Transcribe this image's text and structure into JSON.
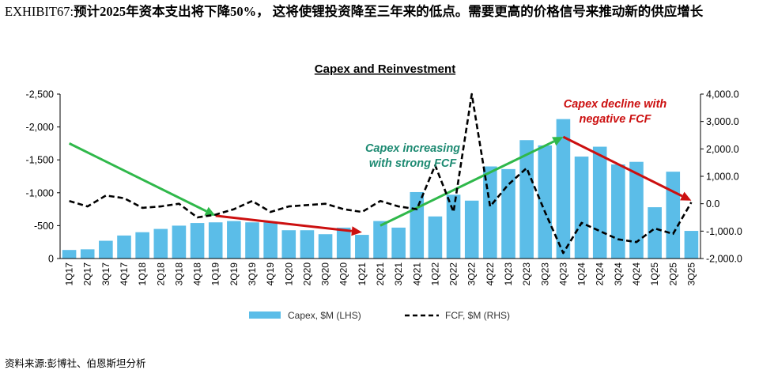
{
  "header": {
    "exhibit_label": "EXHIBIT67:",
    "exhibit_text": "预计2025年资本支出将下降50%， 这将使锂投资降至三年来的低点。需要更高的价格信号来推动新的供应增长"
  },
  "source_note": "资料来源:彭博社、伯恩斯坦分析",
  "chart_data": {
    "type": "bar+line",
    "title": "Capex and Reinvestment",
    "categories": [
      "1Q17",
      "2Q17",
      "3Q17",
      "4Q17",
      "1Q18",
      "2Q18",
      "3Q18",
      "4Q18",
      "1Q19",
      "2Q19",
      "3Q19",
      "4Q19",
      "1Q20",
      "2Q20",
      "3Q20",
      "4Q20",
      "1Q21",
      "2Q21",
      "3Q21",
      "4Q21",
      "1Q22",
      "2Q22",
      "3Q22",
      "4Q22",
      "1Q23",
      "2Q23",
      "3Q23",
      "4Q23",
      "1Q24",
      "2Q24",
      "3Q24",
      "4Q24",
      "1Q25",
      "2Q25",
      "3Q25"
    ],
    "series": [
      {
        "name": "Capex, $M (LHS)",
        "axis": "left",
        "type": "bar",
        "color": "#5bbde8",
        "values": [
          -130,
          -140,
          -270,
          -350,
          -400,
          -450,
          -500,
          -540,
          -550,
          -570,
          -550,
          -550,
          -430,
          -430,
          -370,
          -470,
          -360,
          -570,
          -470,
          -1010,
          -640,
          -970,
          -880,
          -1400,
          -1360,
          -1800,
          -1720,
          -2120,
          -1550,
          -1700,
          -1430,
          -1470,
          -780,
          -1320,
          -420
        ]
      },
      {
        "name": "FCF, $M (RHS)",
        "axis": "right",
        "type": "line",
        "color": "#000000",
        "dash": "dashed",
        "values": [
          100,
          -100,
          300,
          200,
          -150,
          -100,
          0,
          -500,
          -400,
          -200,
          100,
          -300,
          -100,
          -50,
          0,
          -200,
          -300,
          100,
          -100,
          -200,
          1400,
          -300,
          4000,
          -100,
          700,
          1300,
          -300,
          -1800,
          -700,
          -1000,
          -1300,
          -1400,
          -900,
          -1100,
          50
        ]
      }
    ],
    "y_left": {
      "ticks": [
        "-2,500",
        "-2,000",
        "-1,500",
        "-1,000",
        "-500",
        "0"
      ],
      "min": -2500,
      "max": 0,
      "reversed": true
    },
    "y_right": {
      "ticks": [
        "4,000.0",
        "3,000.0",
        "2,000.0",
        "1,000.0",
        "0.0",
        "-1,000.0",
        "-2,000.0"
      ],
      "min": -2000,
      "max": 4000
    },
    "legend": {
      "capex": "Capex, $M (LHS)",
      "fcf": "FCF, $M (RHS)",
      "position": "bottom"
    },
    "annotations": [
      {
        "id": "increase",
        "line1": "Capex increasing",
        "line2": "with strong FCF",
        "color": "#1d8a72"
      },
      {
        "id": "decline",
        "line1": "Capex decline with",
        "line2": "negative FCF",
        "color": "#cc1010"
      }
    ],
    "arrows": [
      {
        "color": "#2fb84a",
        "from": {
          "x": "1Q17",
          "y": -1750
        },
        "to": {
          "x": "1Q19",
          "y": -650
        }
      },
      {
        "color": "#cc1010",
        "from": {
          "x": "1Q19",
          "y": -650
        },
        "to": {
          "x": "1Q21",
          "y": -400
        }
      },
      {
        "color": "#2fb84a",
        "from": {
          "x": "2Q21",
          "y": -500
        },
        "to": {
          "x": "4Q23",
          "y": -1850
        }
      },
      {
        "color": "#cc1010",
        "from": {
          "x": "4Q23",
          "y": -1850
        },
        "to": {
          "x": "3Q25",
          "y": -880
        }
      }
    ]
  }
}
